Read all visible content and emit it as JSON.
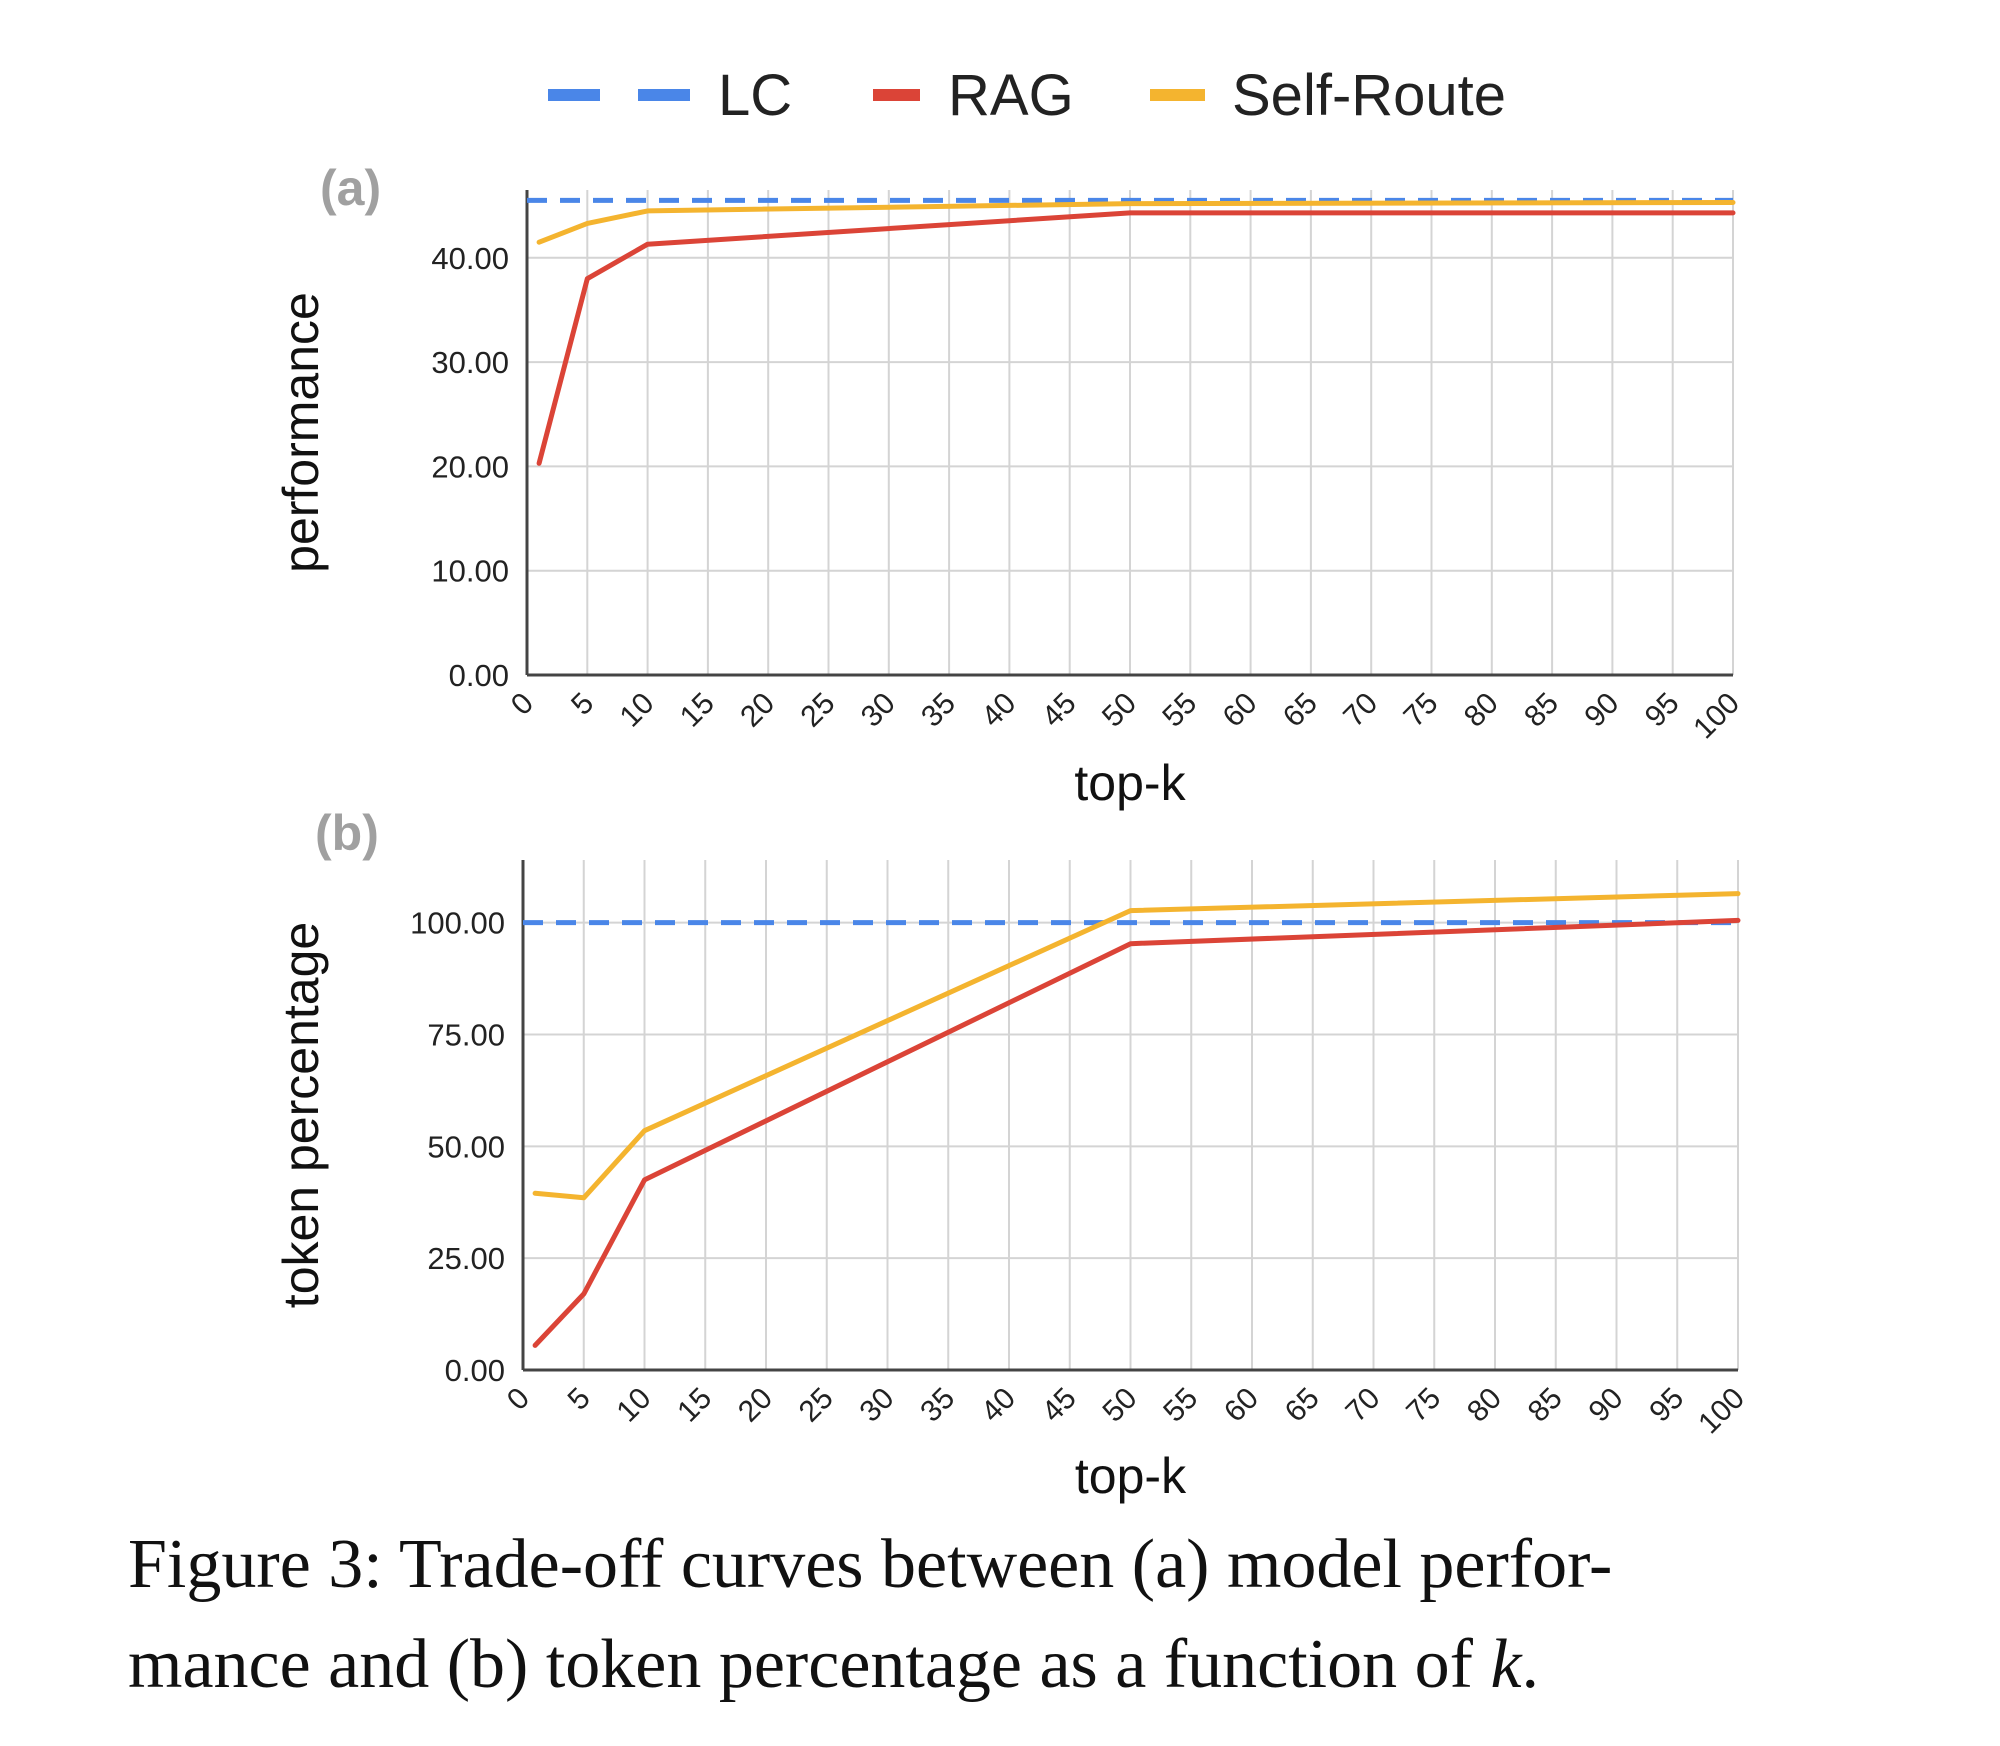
{
  "colors": {
    "LC": "#4a86e8",
    "RAG": "#db4437",
    "Self-Route": "#f4b42f",
    "grid": "#d4d4d4",
    "axis": "#444444"
  },
  "legend": [
    {
      "name": "LC",
      "style": "dashed"
    },
    {
      "name": "RAG",
      "style": "solid"
    },
    {
      "name": "Self-Route",
      "style": "solid"
    }
  ],
  "chart_data": [
    {
      "type": "line",
      "panel_label": "(a)",
      "xlabel": "top-k",
      "ylabel": "performance",
      "xlim": [
        0,
        100
      ],
      "ylim": [
        0,
        46.5
      ],
      "xticks": [
        0,
        5,
        10,
        15,
        20,
        25,
        30,
        35,
        40,
        45,
        50,
        55,
        60,
        65,
        70,
        75,
        80,
        85,
        90,
        95,
        100
      ],
      "yticks": [
        0,
        10,
        20,
        30,
        40
      ],
      "ytick_labels": [
        "0.00",
        "10.00",
        "20.00",
        "30.00",
        "40.00"
      ],
      "grid": true,
      "series": [
        {
          "name": "LC",
          "x": [
            0,
            100
          ],
          "y": [
            45.5,
            45.5
          ]
        },
        {
          "name": "RAG",
          "x": [
            1,
            5,
            10,
            50,
            100
          ],
          "y": [
            20.3,
            38.0,
            41.3,
            44.3,
            44.3
          ]
        },
        {
          "name": "Self-Route",
          "x": [
            1,
            5,
            10,
            50,
            100
          ],
          "y": [
            41.5,
            43.3,
            44.5,
            45.2,
            45.3
          ]
        }
      ]
    },
    {
      "type": "line",
      "panel_label": "(b)",
      "xlabel": "top-k",
      "ylabel": "token percentage",
      "xlim": [
        0,
        100
      ],
      "ylim": [
        0,
        114
      ],
      "xticks": [
        0,
        5,
        10,
        15,
        20,
        25,
        30,
        35,
        40,
        45,
        50,
        55,
        60,
        65,
        70,
        75,
        80,
        85,
        90,
        95,
        100
      ],
      "yticks": [
        0,
        25,
        50,
        75,
        100
      ],
      "ytick_labels": [
        "0.00",
        "25.00",
        "50.00",
        "75.00",
        "100.00"
      ],
      "grid": true,
      "series": [
        {
          "name": "LC",
          "x": [
            0,
            100
          ],
          "y": [
            100,
            100
          ]
        },
        {
          "name": "RAG",
          "x": [
            1,
            5,
            10,
            50,
            100
          ],
          "y": [
            5.5,
            17.0,
            42.5,
            95.3,
            100.5
          ]
        },
        {
          "name": "Self-Route",
          "x": [
            1,
            5,
            10,
            50,
            100
          ],
          "y": [
            39.5,
            38.5,
            53.5,
            102.7,
            106.5
          ]
        }
      ]
    }
  ],
  "caption": {
    "line1": "Figure 3: Trade-off curves between (a) model perfor-",
    "line2_prefix": "mance and (b) token percentage as a function of ",
    "line2_var": "k",
    "line2_suffix": "."
  }
}
